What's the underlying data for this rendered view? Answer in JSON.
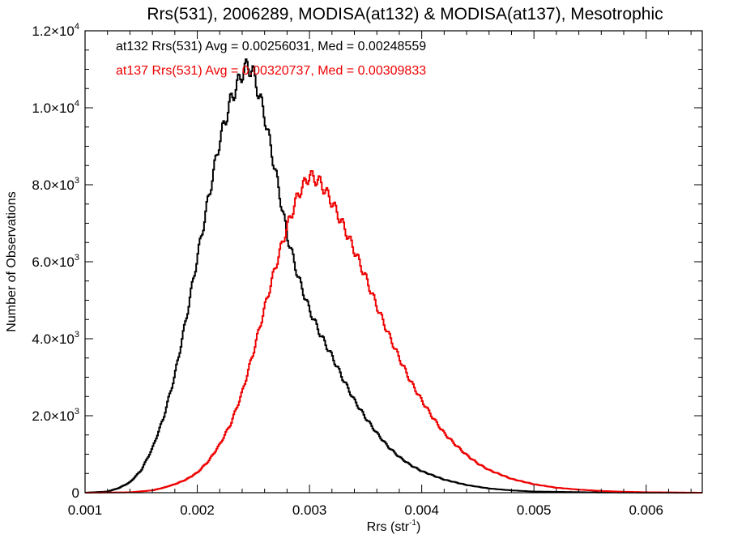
{
  "chart_data": {
    "type": "histogram",
    "title": "Rrs(531), 2006289, MODISA(at132) & MODISA(at137), Mesotrophic",
    "xlabel": "Rrs (str",
    "xlabel_sup": "-1",
    "xlabel_close": ")",
    "ylabel": "Number of Observations",
    "xlim": [
      0.001,
      0.0065
    ],
    "ylim": [
      0,
      12000
    ],
    "xticks": [
      {
        "value": 0.001,
        "label": "0.001"
      },
      {
        "value": 0.002,
        "label": "0.002"
      },
      {
        "value": 0.003,
        "label": "0.003"
      },
      {
        "value": 0.004,
        "label": "0.004"
      },
      {
        "value": 0.005,
        "label": "0.005"
      },
      {
        "value": 0.006,
        "label": "0.006"
      }
    ],
    "yticks": [
      {
        "value": 0,
        "mant": "0",
        "exp": ""
      },
      {
        "value": 2000,
        "mant": "2.0×10",
        "exp": "3"
      },
      {
        "value": 4000,
        "mant": "4.0×10",
        "exp": "3"
      },
      {
        "value": 6000,
        "mant": "6.0×10",
        "exp": "3"
      },
      {
        "value": 8000,
        "mant": "8.0×10",
        "exp": "3"
      },
      {
        "value": 10000,
        "mant": "1.0×10",
        "exp": "4"
      },
      {
        "value": 12000,
        "mant": "1.2×10",
        "exp": "4"
      }
    ],
    "x_minor_per_major": 5,
    "y_minor_per_major": 4,
    "series": [
      {
        "name": "at132",
        "color": "#000000",
        "annotation": "at132 Rrs(531) Avg = 0.00256031, Med = 0.00248559",
        "x": [
          0.001,
          0.0012,
          0.0013,
          0.0014,
          0.0015,
          0.0016,
          0.0017,
          0.0018,
          0.0019,
          0.002,
          0.0021,
          0.0022,
          0.0023,
          0.0024,
          0.00245,
          0.0025,
          0.0026,
          0.0027,
          0.0028,
          0.0029,
          0.003,
          0.0031,
          0.0032,
          0.0033,
          0.0034,
          0.0035,
          0.0036,
          0.0037,
          0.0038,
          0.0039,
          0.004,
          0.0042,
          0.0044,
          0.0046,
          0.0048,
          0.005,
          0.0055,
          0.006,
          0.0065
        ],
        "y": [
          0,
          30,
          120,
          270,
          580,
          1150,
          1950,
          3050,
          4500,
          6100,
          7650,
          9150,
          10200,
          10900,
          11100,
          10900,
          9800,
          8300,
          6700,
          5600,
          4750,
          4100,
          3550,
          2950,
          2400,
          1950,
          1550,
          1200,
          930,
          720,
          560,
          340,
          200,
          110,
          60,
          30,
          10,
          3,
          0
        ]
      },
      {
        "name": "at137",
        "color": "#ee0000",
        "annotation": "at137 Rrs(531) Avg = 0.00320737, Med = 0.00309833",
        "x": [
          0.001,
          0.0014,
          0.0016,
          0.0017,
          0.0018,
          0.0019,
          0.002,
          0.0021,
          0.0022,
          0.0023,
          0.0024,
          0.0025,
          0.0026,
          0.0027,
          0.0028,
          0.0029,
          0.003,
          0.0031,
          0.0032,
          0.0033,
          0.0034,
          0.0035,
          0.0036,
          0.0037,
          0.0038,
          0.0039,
          0.004,
          0.0041,
          0.0042,
          0.0043,
          0.0044,
          0.0045,
          0.0046,
          0.0048,
          0.005,
          0.0052,
          0.0054,
          0.0056,
          0.0058,
          0.006,
          0.0065
        ],
        "y": [
          0,
          10,
          60,
          130,
          220,
          340,
          520,
          820,
          1250,
          1800,
          2600,
          3650,
          4800,
          5900,
          6900,
          7750,
          8250,
          8050,
          7550,
          6950,
          6300,
          5600,
          4850,
          4150,
          3500,
          2900,
          2400,
          1950,
          1550,
          1250,
          980,
          760,
          590,
          360,
          220,
          130,
          80,
          45,
          25,
          12,
          0
        ]
      }
    ]
  }
}
